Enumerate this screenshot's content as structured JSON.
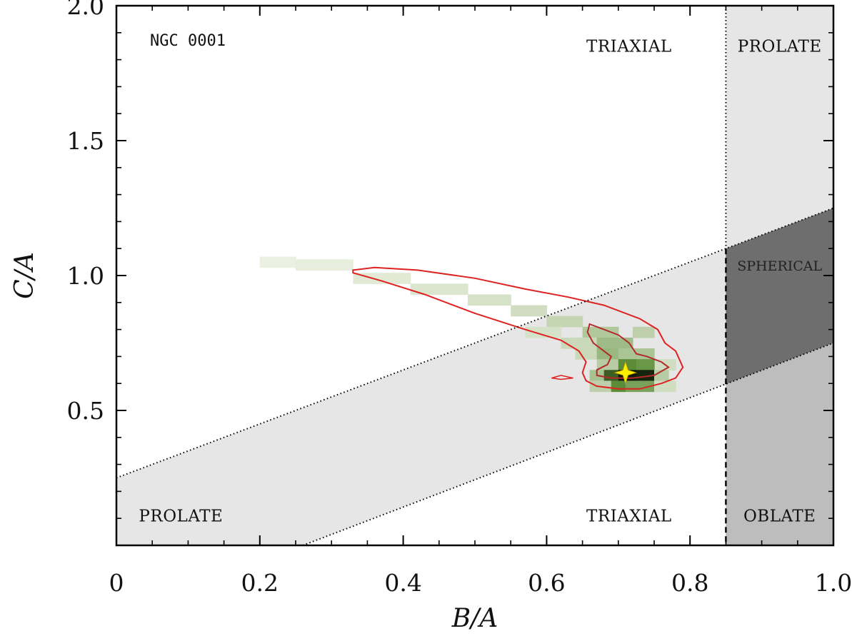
{
  "chart_data": {
    "type": "heatmap",
    "galaxy": "NGC 0001",
    "xlabel": "B/A",
    "ylabel": "C/A",
    "xlim": [
      0,
      1.0
    ],
    "ylim": [
      0,
      2.0
    ],
    "x_ticks": [
      {
        "value": 0,
        "label": "0"
      },
      {
        "value": 0.2,
        "label": "0.2"
      },
      {
        "value": 0.4,
        "label": "0.4"
      },
      {
        "value": 0.6,
        "label": "0.6"
      },
      {
        "value": 0.8,
        "label": "0.8"
      },
      {
        "value": 1.0,
        "label": "1.0"
      }
    ],
    "y_ticks": [
      {
        "value": 0.5,
        "label": "0.5"
      },
      {
        "value": 1.0,
        "label": "1.0"
      },
      {
        "value": 1.5,
        "label": "1.5"
      },
      {
        "value": 2.0,
        "label": "2.0"
      }
    ],
    "regions": {
      "band_lower_line": {
        "x": [
          0.26,
          1.0
        ],
        "y": [
          0.0,
          0.75
        ]
      },
      "band_upper_line": {
        "x": [
          0,
          1.0
        ],
        "y": [
          0.25,
          1.25
        ]
      },
      "vertical_boundary_x": 0.85,
      "labels": [
        {
          "text": "TRIAXIAL",
          "x": 0.715,
          "y": 1.85
        },
        {
          "text": "PROLATE",
          "x": 0.925,
          "y": 1.85
        },
        {
          "text": "SPHERICAL",
          "x": 0.925,
          "y": 1.04
        },
        {
          "text": "PROLATE",
          "x": 0.09,
          "y": 0.11
        },
        {
          "text": "TRIAXIAL",
          "x": 0.715,
          "y": 0.11
        },
        {
          "text": "OBLATE",
          "x": 0.925,
          "y": 0.11
        }
      ]
    },
    "density_cells": [
      {
        "x": 0.2,
        "y": 1.03,
        "w": 0.05,
        "h": 0.04,
        "level": 0.03
      },
      {
        "x": 0.25,
        "y": 1.02,
        "w": 0.08,
        "h": 0.04,
        "level": 0.04
      },
      {
        "x": 0.33,
        "y": 0.97,
        "w": 0.08,
        "h": 0.04,
        "level": 0.06
      },
      {
        "x": 0.41,
        "y": 0.93,
        "w": 0.08,
        "h": 0.04,
        "level": 0.08
      },
      {
        "x": 0.49,
        "y": 0.89,
        "w": 0.06,
        "h": 0.04,
        "level": 0.1
      },
      {
        "x": 0.55,
        "y": 0.85,
        "w": 0.05,
        "h": 0.04,
        "level": 0.12
      },
      {
        "x": 0.6,
        "y": 0.81,
        "w": 0.05,
        "h": 0.04,
        "level": 0.16
      },
      {
        "x": 0.65,
        "y": 0.77,
        "w": 0.05,
        "h": 0.04,
        "level": 0.22
      },
      {
        "x": 0.57,
        "y": 0.77,
        "w": 0.05,
        "h": 0.04,
        "level": 0.1
      },
      {
        "x": 0.62,
        "y": 0.73,
        "w": 0.05,
        "h": 0.04,
        "level": 0.14
      },
      {
        "x": 0.67,
        "y": 0.73,
        "w": 0.05,
        "h": 0.04,
        "level": 0.28
      },
      {
        "x": 0.72,
        "y": 0.77,
        "w": 0.03,
        "h": 0.04,
        "level": 0.18
      },
      {
        "x": 0.64,
        "y": 0.69,
        "w": 0.03,
        "h": 0.04,
        "level": 0.14
      },
      {
        "x": 0.67,
        "y": 0.69,
        "w": 0.03,
        "h": 0.04,
        "level": 0.3
      },
      {
        "x": 0.7,
        "y": 0.69,
        "w": 0.05,
        "h": 0.04,
        "level": 0.24
      },
      {
        "x": 0.67,
        "y": 0.65,
        "w": 0.03,
        "h": 0.04,
        "level": 0.2
      },
      {
        "x": 0.75,
        "y": 0.65,
        "w": 0.03,
        "h": 0.04,
        "level": 0.12
      },
      {
        "x": 0.7,
        "y": 0.65,
        "w": 0.025,
        "h": 0.04,
        "level": 0.5
      },
      {
        "x": 0.725,
        "y": 0.65,
        "w": 0.025,
        "h": 0.04,
        "level": 0.45
      },
      {
        "x": 0.66,
        "y": 0.61,
        "w": 0.02,
        "h": 0.04,
        "level": 0.25
      },
      {
        "x": 0.68,
        "y": 0.61,
        "w": 0.02,
        "h": 0.04,
        "level": 0.7
      },
      {
        "x": 0.7,
        "y": 0.61,
        "w": 0.025,
        "h": 0.04,
        "level": 1.0
      },
      {
        "x": 0.725,
        "y": 0.61,
        "w": 0.025,
        "h": 0.04,
        "level": 0.95
      },
      {
        "x": 0.75,
        "y": 0.61,
        "w": 0.02,
        "h": 0.04,
        "level": 0.2
      },
      {
        "x": 0.66,
        "y": 0.57,
        "w": 0.03,
        "h": 0.04,
        "level": 0.18
      },
      {
        "x": 0.69,
        "y": 0.57,
        "w": 0.02,
        "h": 0.04,
        "level": 0.5
      },
      {
        "x": 0.71,
        "y": 0.57,
        "w": 0.04,
        "h": 0.04,
        "level": 0.4
      },
      {
        "x": 0.75,
        "y": 0.57,
        "w": 0.03,
        "h": 0.04,
        "level": 0.12
      }
    ],
    "contour_outer": [
      [
        0.33,
        1.02
      ],
      [
        0.36,
        1.03
      ],
      [
        0.42,
        1.02
      ],
      [
        0.5,
        0.99
      ],
      [
        0.57,
        0.95
      ],
      [
        0.63,
        0.92
      ],
      [
        0.68,
        0.89
      ],
      [
        0.73,
        0.84
      ],
      [
        0.755,
        0.8
      ],
      [
        0.765,
        0.75
      ],
      [
        0.78,
        0.72
      ],
      [
        0.79,
        0.66
      ],
      [
        0.78,
        0.62
      ],
      [
        0.76,
        0.6
      ],
      [
        0.73,
        0.58
      ],
      [
        0.7,
        0.58
      ],
      [
        0.67,
        0.59
      ],
      [
        0.655,
        0.61
      ],
      [
        0.65,
        0.64
      ],
      [
        0.655,
        0.68
      ],
      [
        0.645,
        0.72
      ],
      [
        0.62,
        0.76
      ],
      [
        0.57,
        0.8
      ],
      [
        0.5,
        0.86
      ],
      [
        0.43,
        0.93
      ],
      [
        0.37,
        0.98
      ],
      [
        0.33,
        1.01
      ]
    ],
    "contour_inner": [
      [
        0.66,
        0.82
      ],
      [
        0.68,
        0.8
      ],
      [
        0.7,
        0.78
      ],
      [
        0.715,
        0.75
      ],
      [
        0.725,
        0.71
      ],
      [
        0.74,
        0.7
      ],
      [
        0.76,
        0.68
      ],
      [
        0.77,
        0.66
      ],
      [
        0.75,
        0.63
      ],
      [
        0.72,
        0.62
      ],
      [
        0.69,
        0.62
      ],
      [
        0.67,
        0.63
      ],
      [
        0.67,
        0.65
      ],
      [
        0.685,
        0.67
      ],
      [
        0.69,
        0.7
      ],
      [
        0.68,
        0.72
      ],
      [
        0.665,
        0.75
      ],
      [
        0.657,
        0.79
      ],
      [
        0.66,
        0.82
      ]
    ],
    "contour_small": [
      [
        0.607,
        0.62
      ],
      [
        0.62,
        0.63
      ],
      [
        0.637,
        0.62
      ],
      [
        0.62,
        0.615
      ],
      [
        0.607,
        0.62
      ]
    ],
    "best_fit": {
      "x": 0.71,
      "y": 0.64
    },
    "colors": {
      "band": "#e6e6e6",
      "oblate": "#bdbdbd",
      "spherical": "#6e6e6e",
      "contour": "#dd2222",
      "star": "#ffee00",
      "density_low": "#f4f7ec",
      "density_high": "#0d1a08"
    }
  }
}
